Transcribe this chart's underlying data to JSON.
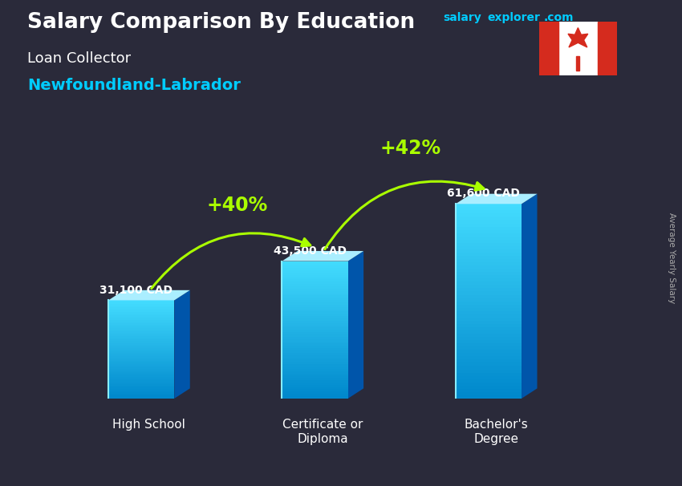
{
  "title_main": "Salary Comparison By Education",
  "subtitle1": "Loan Collector",
  "subtitle2": "Newfoundland-Labrador",
  "categories": [
    "High School",
    "Certificate or\nDiploma",
    "Bachelor's\nDegree"
  ],
  "values": [
    31100,
    43500,
    61600
  ],
  "labels": [
    "31,100 CAD",
    "43,500 CAD",
    "61,600 CAD"
  ],
  "pct_labels": [
    "+40%",
    "+42%"
  ],
  "bar_front_top": "#55ddff",
  "bar_front_mid": "#22bbee",
  "bar_front_bot": "#0088bb",
  "bar_side_color": "#0066aa",
  "bar_top_color": "#88eeff",
  "text_color_white": "#ffffff",
  "text_color_cyan": "#00ccff",
  "text_color_green": "#aaff00",
  "text_color_gray": "#cccccc",
  "text_color_label": "#dddddd",
  "brand_salary": "#00ccff",
  "brand_explorer": "#00ccff",
  "brand_com": "#00ccff",
  "ylabel": "Average Yearly Salary",
  "y_max": 80000,
  "arrow_color": "#aaff00",
  "bg_color": "#2a2a3a"
}
